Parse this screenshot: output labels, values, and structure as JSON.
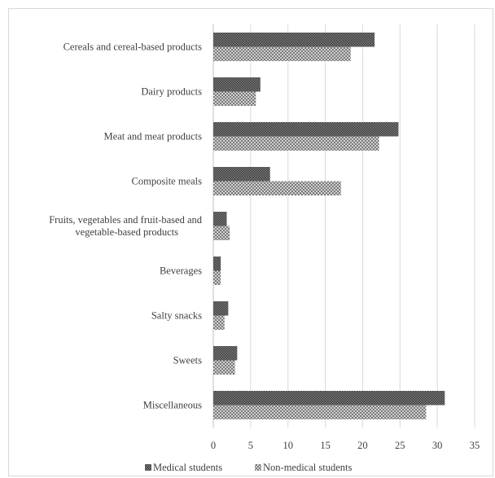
{
  "chart_data": {
    "type": "bar",
    "orientation": "horizontal",
    "categories": [
      [
        "Cereals and cereal-based products"
      ],
      [
        "Dairy products"
      ],
      [
        "Meat and meat products"
      ],
      [
        "Composite meals"
      ],
      [
        "Fruits, vegetables and fruit-based and",
        "vegetable-based products"
      ],
      [
        "Beverages"
      ],
      [
        "Salty snacks"
      ],
      [
        "Sweets"
      ],
      [
        "Miscellaneous"
      ]
    ],
    "series": [
      {
        "name": "Medical students",
        "values": [
          21.6,
          6.3,
          24.8,
          7.6,
          1.8,
          1.0,
          2.0,
          3.2,
          31.0
        ],
        "color": "#595959",
        "pattern": "dense-dots"
      },
      {
        "name": "Non-medical students",
        "values": [
          18.4,
          5.7,
          22.2,
          17.1,
          2.2,
          1.0,
          1.5,
          2.9,
          28.5
        ],
        "color": "#8c8c8c",
        "pattern": "checker"
      }
    ],
    "xlim": [
      0,
      35
    ],
    "xticks": [
      0,
      5,
      10,
      15,
      20,
      25,
      30,
      35
    ],
    "grid": true,
    "legend": "bottom",
    "title": "",
    "xlabel": "",
    "ylabel": ""
  },
  "legend": {
    "items": [
      {
        "label": "Medical students"
      },
      {
        "label": "Non-medical students"
      }
    ]
  }
}
